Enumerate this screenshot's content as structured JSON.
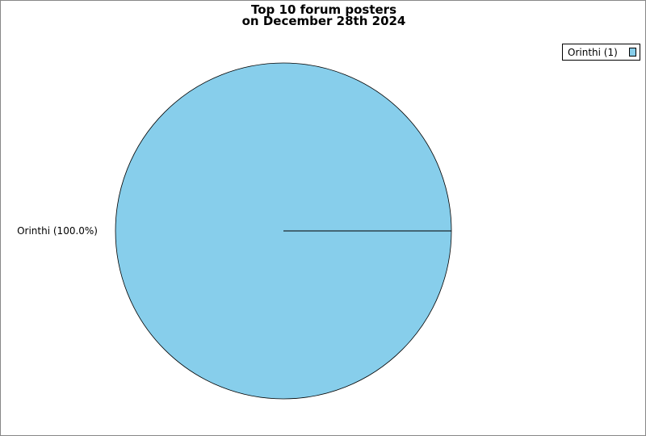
{
  "chart_data": {
    "type": "pie",
    "title": [
      "Top 10 forum posters",
      "on December 28th 2024"
    ],
    "slices": [
      {
        "name": "Orinthi",
        "value": 1,
        "percent": 100.0,
        "label": "Orinthi (100.0%)",
        "legend": "Orinthi (1)",
        "color": "#87ceeb"
      }
    ],
    "legend_position": "top-right"
  }
}
